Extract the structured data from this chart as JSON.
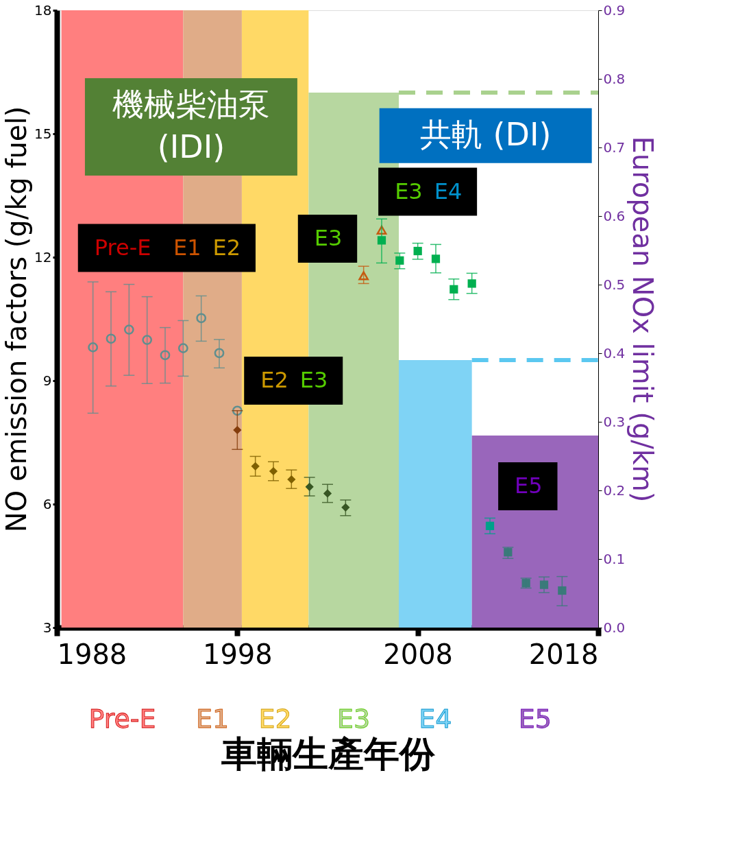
{
  "chart_data": {
    "type": "scatter",
    "xlabel": "車輛生產年份",
    "ylabel": "NO emission factors (g/kg fuel)",
    "y2label": "European NOx limit (g/km)",
    "xlim": [
      1988,
      2018
    ],
    "xticks": [
      1988,
      1998,
      2008,
      2018
    ],
    "ylim": [
      3,
      18
    ],
    "yticks": [
      3,
      6,
      9,
      12,
      15,
      18
    ],
    "y2lim": [
      0,
      0.9
    ],
    "y2ticks": [
      {
        "value": 0,
        "label": "0.0"
      },
      0.1,
      0.2,
      0.3,
      0.4,
      0.5,
      0.6,
      0.7,
      0.8,
      0.9
    ],
    "series": [
      {
        "name": "Pre-E",
        "type": "area",
        "axis": "y2",
        "color": "#ff7f7f",
        "x": [
          1988.25,
          1995.0
        ],
        "values": [
          0.9,
          0.9
        ]
      },
      {
        "name": "E1",
        "type": "area",
        "axis": "y2",
        "color": "#e0ac88",
        "x": [
          1995.0,
          1998.25
        ],
        "values": [
          0.9,
          0.9
        ]
      },
      {
        "name": "E2",
        "type": "area",
        "axis": "y2",
        "color": "#ffd966",
        "x": [
          1998.25,
          2001.95
        ],
        "values": [
          0.9,
          0.9
        ]
      },
      {
        "name": "E3",
        "type": "area",
        "axis": "y2",
        "color": "#b7d7a0",
        "x": [
          2001.95,
          2006.95
        ],
        "values": [
          0.78,
          0.78
        ]
      },
      {
        "name": "E4",
        "type": "area",
        "axis": "y2",
        "color": "#7fd3f5",
        "x": [
          2006.95,
          2011.0
        ],
        "values": [
          0.39,
          0.39
        ]
      },
      {
        "name": "E5",
        "type": "area",
        "axis": "y2",
        "color": "#9966bb",
        "x": [
          2011.0,
          2018.0
        ],
        "values": [
          0.28,
          0.28
        ]
      },
      {
        "type": "line",
        "axis": "y2",
        "color": "#a9d18e",
        "line_style": "dashed",
        "x": [
          2006.95,
          2018
        ],
        "values": [
          0.78,
          0.78
        ]
      },
      {
        "type": "line",
        "axis": "y2",
        "color": "#5bc8f0",
        "line_style": "dashed",
        "x": [
          2011.0,
          2018
        ],
        "values": [
          0.39,
          0.39
        ]
      },
      {
        "marker": "circle",
        "color": "#5f8f8f",
        "x": [
          1990,
          1991,
          1992,
          1993,
          1994,
          1995,
          1996,
          1997,
          1998
        ],
        "values": [
          9.81,
          10.02,
          10.24,
          9.99,
          9.62,
          9.79,
          10.52,
          9.67,
          8.27
        ],
        "errors": [
          [
            8.21,
            11.4
          ],
          [
            8.87,
            11.16
          ],
          [
            9.13,
            11.34
          ],
          [
            8.93,
            11.04
          ],
          [
            8.94,
            10.29
          ],
          [
            9.11,
            10.46
          ],
          [
            9.96,
            11.06
          ],
          [
            9.31,
            10.0
          ],
          null
        ]
      },
      {
        "marker": "diamond",
        "colors": [
          "#843c0c",
          "#7f6000",
          "#7f6000",
          "#7f6000",
          "#375623",
          "#375623",
          "#375623"
        ],
        "x": [
          1998,
          1999,
          2000,
          2001,
          2002,
          2003,
          2004
        ],
        "values": [
          7.8,
          6.92,
          6.8,
          6.6,
          6.42,
          6.26,
          5.92
        ],
        "errors": [
          [
            7.33,
            8.27
          ],
          [
            6.68,
            7.16
          ],
          [
            6.57,
            7.03
          ],
          [
            6.38,
            6.83
          ],
          [
            6.2,
            6.65
          ],
          [
            6.04,
            6.48
          ],
          [
            5.72,
            6.1
          ]
        ]
      },
      {
        "marker": "triangle",
        "color": "#c55a11",
        "x": [
          2005,
          2006
        ],
        "values": [
          11.55,
          12.66
        ],
        "errors": [
          [
            11.36,
            11.78
          ],
          null
        ]
      },
      {
        "marker": "square",
        "color": "#00b050",
        "x": [
          2006,
          2007,
          2008,
          2009,
          2010,
          2011
        ],
        "values": [
          12.41,
          11.92,
          12.15,
          11.96,
          11.22,
          11.36
        ],
        "errors": [
          [
            11.86,
            12.93
          ],
          [
            11.72,
            12.1
          ],
          [
            11.95,
            12.34
          ],
          [
            11.62,
            12.31
          ],
          [
            10.97,
            11.47
          ],
          [
            11.12,
            11.61
          ]
        ]
      },
      {
        "marker": "square",
        "colors": [
          "#00a08a",
          "#3a7a7a",
          "#3a7a7a",
          "#3a7a7a",
          "#3a7a7a"
        ],
        "x": [
          2012,
          2013,
          2014,
          2015,
          2016
        ],
        "values": [
          5.47,
          4.83,
          4.08,
          4.04,
          3.9
        ],
        "errors": [
          [
            5.28,
            5.66
          ],
          [
            4.68,
            4.95
          ],
          [
            3.96,
            4.2
          ],
          [
            3.85,
            4.23
          ],
          [
            3.53,
            4.24
          ]
        ]
      }
    ],
    "annotations": [
      "機械柴油泵 (IDI)",
      "共軌 (DI)",
      "Pre-E E1 E2",
      "E3",
      "E3 E4",
      "E2 E3",
      "E5"
    ],
    "grid": false
  }
}
